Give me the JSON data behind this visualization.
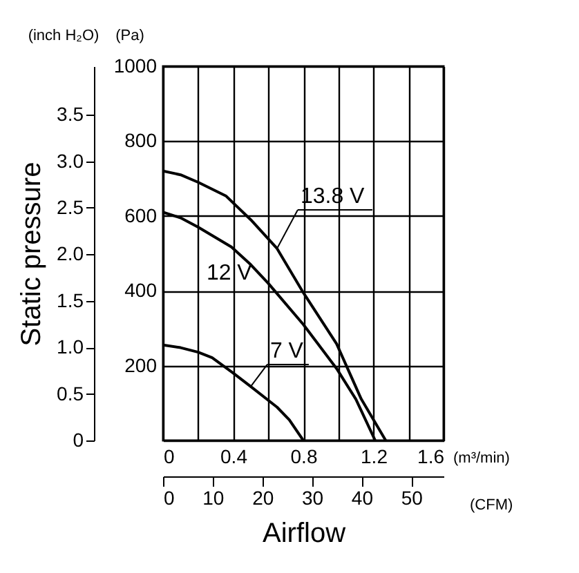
{
  "chart_data": {
    "type": "line",
    "xlabel": "Airflow",
    "ylabel": "Static pressure",
    "annotations": [
      "(inch H₂O)",
      "(Pa)",
      "(m³/min)",
      "(CFM)"
    ],
    "xlim": [
      0,
      1.6
    ],
    "xticks": [
      0,
      {
        "value": 0.2,
        "label": null
      },
      0.4,
      {
        "value": 0.6,
        "label": null
      },
      0.8,
      {
        "value": 1.0,
        "label": null
      },
      1.2,
      {
        "value": 1.4,
        "label": null
      },
      1.6
    ],
    "ylim": [
      0,
      4.02
    ],
    "yticks": [
      0,
      0.5,
      {
        "value": 1,
        "label": "1.0"
      },
      1.5,
      {
        "value": 2,
        "label": "2.0"
      },
      2.5,
      {
        "value": 3,
        "label": "3.0"
      },
      3.5
    ],
    "y2lim": [
      0,
      1000
    ],
    "y2ticks": [
      {
        "value": 0,
        "label": null
      },
      200,
      400,
      600,
      800,
      1000
    ],
    "x2lim": [
      0,
      56.5
    ],
    "x2ticks": [
      0,
      10,
      20,
      30,
      40,
      50
    ],
    "grid": true,
    "legend": false,
    "marker": "none",
    "line_style": "solid",
    "series": [
      {
        "name": "13.8 V",
        "color": "#000000",
        "axis": "y2",
        "x": [
          0,
          0.1,
          0.2,
          0.36,
          0.5,
          0.65,
          0.8,
          0.99,
          1.13,
          1.27
        ],
        "values": [
          720,
          710,
          690,
          653,
          590,
          513,
          395,
          258,
          111,
          0
        ]
      },
      {
        "name": "12 V",
        "color": "#000000",
        "axis": "y2",
        "x": [
          0,
          0.1,
          0.2,
          0.39,
          0.5,
          0.6,
          0.8,
          0.99,
          1.1,
          1.21
        ],
        "values": [
          610,
          595,
          570,
          517,
          470,
          420,
          310,
          192,
          110,
          0
        ]
      },
      {
        "name": "7 V",
        "color": "#000000",
        "axis": "y2",
        "x": [
          0,
          0.1,
          0.2,
          0.28,
          0.4,
          0.5,
          0.65,
          0.72,
          0.8
        ],
        "values": [
          255,
          248,
          236,
          221,
          180,
          144,
          89,
          55,
          0
        ]
      }
    ]
  }
}
